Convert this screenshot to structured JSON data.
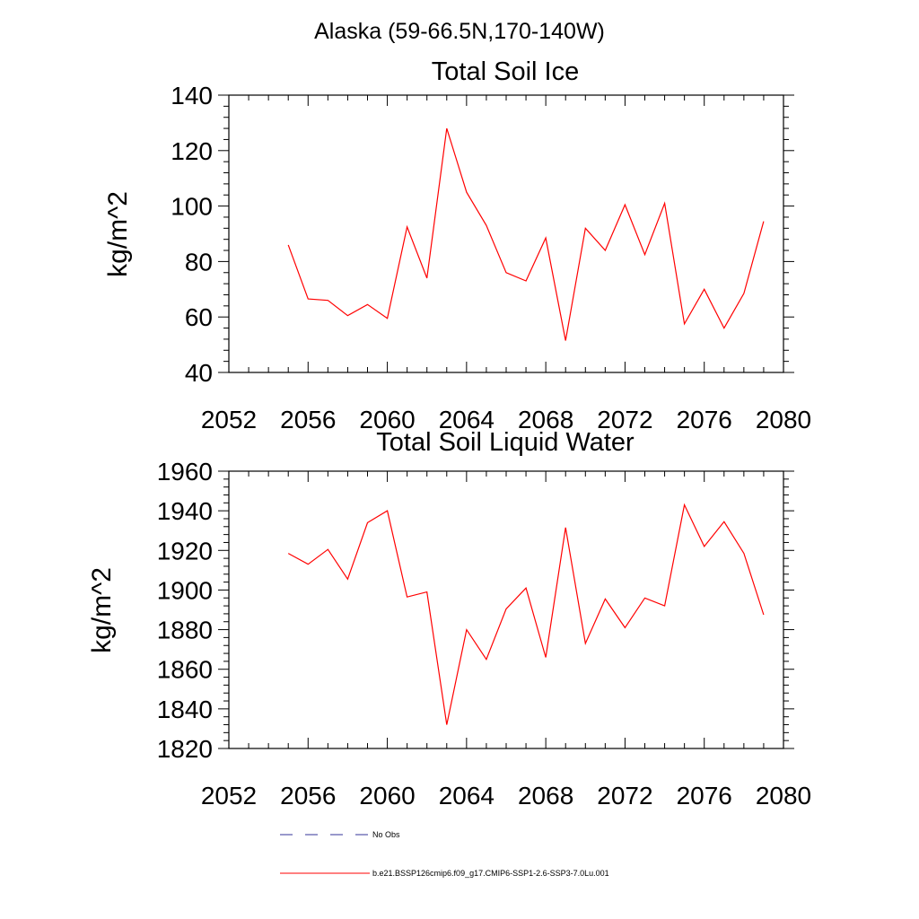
{
  "figure": {
    "title": "Alaska (59-66.5N,170-140W)"
  },
  "chart_data": [
    {
      "type": "line",
      "title": "Total Soil Ice",
      "xlabel": "",
      "ylabel": "kg/m^2",
      "xlim": [
        2052,
        2080
      ],
      "ylim": [
        40,
        140
      ],
      "x_ticks": [
        2052,
        2056,
        2060,
        2064,
        2068,
        2072,
        2076,
        2080
      ],
      "y_ticks": [
        40,
        60,
        80,
        100,
        120,
        140
      ],
      "grid": false,
      "series": [
        {
          "name": "b.e21.BSSP126cmip6.f09_g17.CMIP6-SSP1-2.6-SSP3-7.0Lu.001",
          "color": "#ff0000",
          "x": [
            2055,
            2056,
            2057,
            2058,
            2059,
            2060,
            2061,
            2062,
            2063,
            2064,
            2065,
            2066,
            2067,
            2068,
            2069,
            2070,
            2071,
            2072,
            2073,
            2074,
            2075,
            2076,
            2077,
            2078,
            2079
          ],
          "values": [
            86,
            66.5,
            66,
            60.5,
            64.5,
            59.5,
            92.5,
            74,
            128,
            105,
            93,
            76,
            73,
            88.5,
            51.5,
            92,
            84,
            100.5,
            82.5,
            101,
            57.5,
            70,
            56,
            68.5,
            94.5
          ]
        }
      ]
    },
    {
      "type": "line",
      "title": "Total Soil Liquid Water",
      "xlabel": "",
      "ylabel": "kg/m^2",
      "xlim": [
        2052,
        2080
      ],
      "ylim": [
        1820,
        1960
      ],
      "x_ticks": [
        2052,
        2056,
        2060,
        2064,
        2068,
        2072,
        2076,
        2080
      ],
      "y_ticks": [
        1820,
        1840,
        1860,
        1880,
        1900,
        1920,
        1940,
        1960
      ],
      "grid": false,
      "series": [
        {
          "name": "b.e21.BSSP126cmip6.f09_g17.CMIP6-SSP1-2.6-SSP3-7.0Lu.001",
          "color": "#ff0000",
          "x": [
            2055,
            2056,
            2057,
            2058,
            2059,
            2060,
            2061,
            2062,
            2063,
            2064,
            2065,
            2066,
            2067,
            2068,
            2069,
            2070,
            2071,
            2072,
            2073,
            2074,
            2075,
            2076,
            2077,
            2078,
            2079
          ],
          "values": [
            1918.5,
            1913,
            1920.5,
            1905.5,
            1934,
            1940,
            1896.5,
            1899,
            1832,
            1880,
            1865,
            1890.5,
            1901,
            1866,
            1931.5,
            1873,
            1895.5,
            1881,
            1896,
            1892,
            1943,
            1922,
            1934.5,
            1918.5,
            1887.5
          ]
        }
      ]
    }
  ],
  "legend": {
    "placement": "bottom",
    "entries": [
      {
        "label": "No Obs",
        "color": "#333399",
        "style": "dashed"
      },
      {
        "label": "b.e21.BSSP126cmip6.f09_g17.CMIP6-SSP1-2.6-SSP3-7.0Lu.001",
        "color": "#ff0000",
        "style": "solid"
      }
    ]
  }
}
